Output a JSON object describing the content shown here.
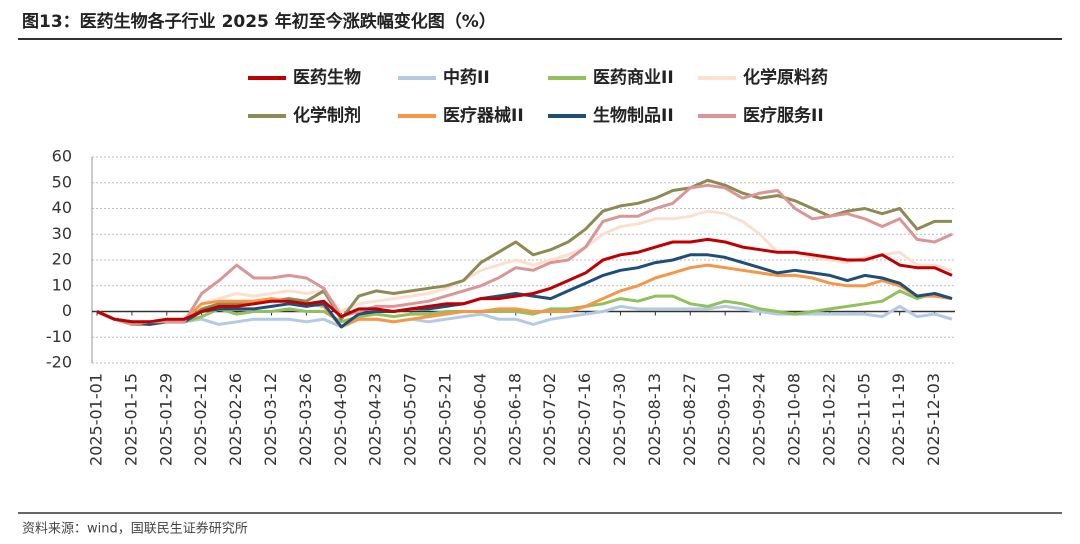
{
  "chart_data": {
    "type": "line",
    "title": "图13：医药生物各子行业 2025 年初至今涨跌幅变化图（%）",
    "source": "资料来源：wind，国联民生证券研究所",
    "x": [
      "2025-01-01",
      "2025-01-08",
      "2025-01-15",
      "2025-01-22",
      "2025-01-29",
      "2025-02-05",
      "2025-02-12",
      "2025-02-19",
      "2025-02-26",
      "2025-03-05",
      "2025-03-12",
      "2025-03-19",
      "2025-03-26",
      "2025-04-02",
      "2025-04-09",
      "2025-04-16",
      "2025-04-23",
      "2025-04-30",
      "2025-05-07",
      "2025-05-14",
      "2025-05-21",
      "2025-05-28",
      "2025-06-04",
      "2025-06-11",
      "2025-06-18",
      "2025-06-25",
      "2025-07-02",
      "2025-07-09",
      "2025-07-16",
      "2025-07-23",
      "2025-07-30",
      "2025-08-06",
      "2025-08-13",
      "2025-08-20",
      "2025-08-27",
      "2025-09-03",
      "2025-09-10",
      "2025-09-17",
      "2025-09-24",
      "2025-10-01",
      "2025-10-08",
      "2025-10-15",
      "2025-10-22",
      "2025-10-29",
      "2025-11-05",
      "2025-11-12",
      "2025-11-19",
      "2025-11-26",
      "2025-12-03",
      "2025-12-10"
    ],
    "xlim": [
      "2025-01-01",
      "2025-12-10"
    ],
    "xticks": [
      "2025-01-01",
      "2025-01-15",
      "2025-01-29",
      "2025-02-12",
      "2025-02-26",
      "2025-03-12",
      "2025-03-26",
      "2025-04-09",
      "2025-04-23",
      "2025-05-07",
      "2025-05-21",
      "2025-06-04",
      "2025-06-18",
      "2025-07-02",
      "2025-07-16",
      "2025-07-30",
      "2025-08-13",
      "2025-08-27",
      "2025-09-10",
      "2025-09-24",
      "2025-10-08",
      "2025-10-22",
      "2025-11-05",
      "2025-11-19",
      "2025-12-03"
    ],
    "ylim": [
      -20,
      60
    ],
    "yticks": [
      -20,
      -10,
      0,
      10,
      20,
      30,
      40,
      50,
      60
    ],
    "grid": true,
    "legend": "top",
    "series": [
      {
        "name": "医药生物",
        "color": "#c00000",
        "values": [
          0,
          -3,
          -4,
          -4,
          -3,
          -3,
          0,
          2,
          2,
          3,
          4,
          4,
          3,
          4,
          -2,
          1,
          1,
          0,
          1,
          2,
          3,
          3,
          5,
          5,
          6,
          7,
          9,
          12,
          15,
          20,
          22,
          23,
          25,
          27,
          27,
          28,
          27,
          25,
          24,
          23,
          23,
          22,
          21,
          20,
          20,
          22,
          18,
          17,
          17,
          14
        ]
      },
      {
        "name": "中药II",
        "color": "#b4c9e2",
        "values": [
          0,
          -3,
          -4,
          -4,
          -4,
          -4,
          -3,
          -5,
          -4,
          -3,
          -3,
          -3,
          -4,
          -3,
          -6,
          -3,
          -3,
          -4,
          -3,
          -4,
          -3,
          -2,
          -1,
          -3,
          -3,
          -5,
          -3,
          -2,
          -1,
          0,
          2,
          1,
          1,
          1,
          1,
          1,
          2,
          1,
          0,
          -1,
          -1,
          -1,
          -1,
          -1,
          -1,
          -2,
          2,
          -2,
          -1,
          -3
        ]
      },
      {
        "name": "医药商业II",
        "color": "#92c05a",
        "values": [
          0,
          -3,
          -4,
          -5,
          -4,
          -4,
          -2,
          1,
          -1,
          0,
          0,
          1,
          0,
          0,
          -4,
          -2,
          -1,
          -2,
          -1,
          -1,
          0,
          0,
          0,
          0,
          0,
          -1,
          1,
          1,
          2,
          3,
          5,
          4,
          6,
          6,
          3,
          2,
          4,
          3,
          1,
          0,
          -1,
          0,
          1,
          2,
          3,
          4,
          8,
          5,
          7,
          5
        ]
      },
      {
        "name": "化学原料药",
        "color": "#fbe0d0",
        "values": [
          0,
          -3,
          -5,
          -5,
          -4,
          -3,
          3,
          5,
          7,
          6,
          7,
          8,
          7,
          8,
          0,
          3,
          4,
          5,
          6,
          7,
          9,
          12,
          16,
          18,
          20,
          18,
          20,
          22,
          25,
          30,
          33,
          34,
          36,
          36,
          37,
          39,
          38,
          35,
          30,
          23,
          23,
          21,
          20,
          19,
          21,
          22,
          23,
          18,
          18,
          16
        ]
      },
      {
        "name": "化学制剂",
        "color": "#8e8a53",
        "values": [
          0,
          -3,
          -5,
          -5,
          -4,
          -4,
          1,
          3,
          3,
          3,
          4,
          5,
          4,
          8,
          -3,
          6,
          8,
          7,
          8,
          9,
          10,
          12,
          19,
          23,
          27,
          22,
          24,
          27,
          32,
          39,
          41,
          42,
          44,
          47,
          48,
          51,
          49,
          46,
          44,
          45,
          43,
          40,
          37,
          39,
          40,
          38,
          40,
          32,
          35,
          35
        ]
      },
      {
        "name": "医疗器械II",
        "color": "#f79646",
        "values": [
          0,
          -3,
          -4,
          -5,
          -4,
          -3,
          3,
          4,
          4,
          4,
          5,
          4,
          3,
          2,
          -6,
          -3,
          -3,
          -4,
          -3,
          -2,
          -1,
          0,
          0,
          1,
          1,
          0,
          0,
          0,
          2,
          5,
          8,
          10,
          13,
          15,
          17,
          18,
          17,
          16,
          15,
          14,
          14,
          13,
          11,
          10,
          10,
          12,
          10,
          6,
          6,
          5
        ]
      },
      {
        "name": "生物制品II",
        "color": "#1f4e79",
        "values": [
          0,
          -3,
          -4,
          -5,
          -4,
          -4,
          0,
          1,
          1,
          1,
          2,
          3,
          2,
          3,
          -6,
          -1,
          0,
          0,
          1,
          1,
          2,
          3,
          5,
          6,
          7,
          6,
          5,
          8,
          11,
          14,
          16,
          17,
          19,
          20,
          22,
          22,
          21,
          19,
          17,
          15,
          16,
          15,
          14,
          12,
          14,
          13,
          11,
          6,
          7,
          5
        ]
      },
      {
        "name": "医疗服务II",
        "color": "#d99694",
        "values": [
          0,
          -3,
          -5,
          -4,
          -4,
          -4,
          7,
          12,
          18,
          13,
          13,
          14,
          13,
          9,
          -2,
          0,
          2,
          2,
          3,
          4,
          6,
          8,
          10,
          13,
          17,
          16,
          19,
          20,
          25,
          35,
          37,
          37,
          40,
          42,
          48,
          49,
          48,
          44,
          46,
          47,
          40,
          36,
          37,
          38,
          36,
          33,
          36,
          28,
          27,
          30
        ]
      }
    ]
  }
}
